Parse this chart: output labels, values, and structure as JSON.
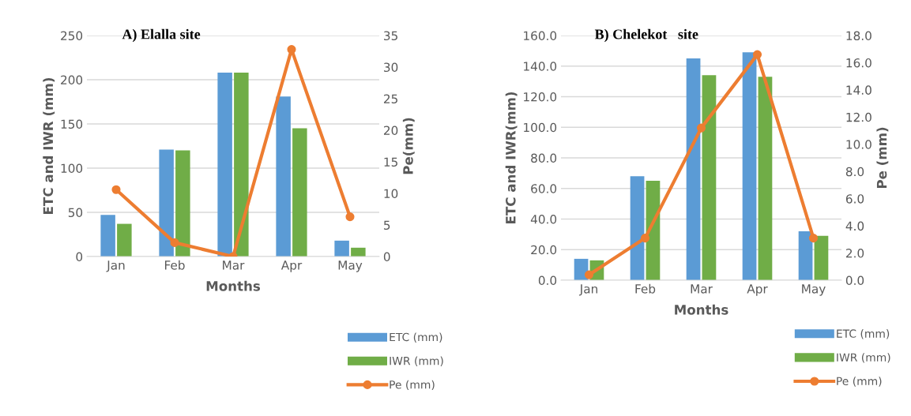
{
  "chart_data": [
    {
      "type": "bar",
      "title": "A) Elalla site",
      "xlabel": "Months",
      "ylabel": "ETC and IWR (mm)",
      "y2label": "Pe(mm)",
      "categories": [
        "Jan",
        "Feb",
        "Mar",
        "Apr",
        "May"
      ],
      "series": [
        {
          "name": "ETC (mm)",
          "color": "#5b9bd5",
          "values": [
            47,
            121,
            208,
            181,
            18
          ]
        },
        {
          "name": "IWR (mm)",
          "color": "#70ad47",
          "values": [
            37,
            120,
            208,
            145,
            10
          ]
        },
        {
          "name": "Pe (mm)",
          "type": "line",
          "axis": "y2",
          "color": "#ed7d31",
          "marker": "circle",
          "values": [
            10.6,
            2.2,
            0,
            32.8,
            6.3
          ]
        }
      ],
      "ylim": [
        0,
        250
      ],
      "yticks": [
        0,
        50,
        100,
        150,
        200,
        250
      ],
      "y2lim": [
        0,
        35
      ],
      "y2ticks": [
        0,
        5,
        10,
        15,
        20,
        25,
        30,
        35
      ],
      "grid": "y",
      "legend": "bottom right"
    },
    {
      "type": "bar",
      "title": "B) Chelekot   site",
      "xlabel": "Months",
      "ylabel": "ETC and IWR(mm)",
      "y2label": "Pe (mm)",
      "categories": [
        "Jan",
        "Feb",
        "Mar",
        "Apr",
        "May"
      ],
      "series": [
        {
          "name": "ETC (mm)",
          "color": "#5b9bd5",
          "values": [
            14,
            68,
            145,
            149,
            32
          ]
        },
        {
          "name": "IWR (mm)",
          "color": "#70ad47",
          "values": [
            13,
            65,
            134,
            133,
            29
          ]
        },
        {
          "name": "Pe (mm)",
          "type": "line",
          "axis": "y2",
          "color": "#ed7d31",
          "marker": "circle",
          "values": [
            0.4,
            3.1,
            11.2,
            16.6,
            3.1
          ]
        }
      ],
      "ylim": [
        0,
        160
      ],
      "yticks": [
        {
          "value": 0,
          "label": "0.0"
        },
        {
          "value": 20,
          "label": "20.0"
        },
        {
          "value": 40,
          "label": "40.0"
        },
        {
          "value": 60,
          "label": "60.0"
        },
        {
          "value": 80,
          "label": "80.0"
        },
        {
          "value": 100,
          "label": "100.0"
        },
        {
          "value": 120,
          "label": "120.0"
        },
        {
          "value": 140,
          "label": "140.0"
        },
        {
          "value": 160,
          "label": "160.0"
        }
      ],
      "y2lim": [
        0,
        18
      ],
      "y2ticks": [
        {
          "value": 0,
          "label": "0.0"
        },
        {
          "value": 2,
          "label": "2.0"
        },
        {
          "value": 4,
          "label": "4.0"
        },
        {
          "value": 6,
          "label": "6.0"
        },
        {
          "value": 8,
          "label": "8.0"
        },
        {
          "value": 10,
          "label": "10.0"
        },
        {
          "value": 12,
          "label": "12.0"
        },
        {
          "value": 14,
          "label": "14.0"
        },
        {
          "value": 16,
          "label": "16.0"
        },
        {
          "value": 18,
          "label": "18.0"
        }
      ],
      "grid": "y",
      "legend": "bottom right"
    }
  ]
}
